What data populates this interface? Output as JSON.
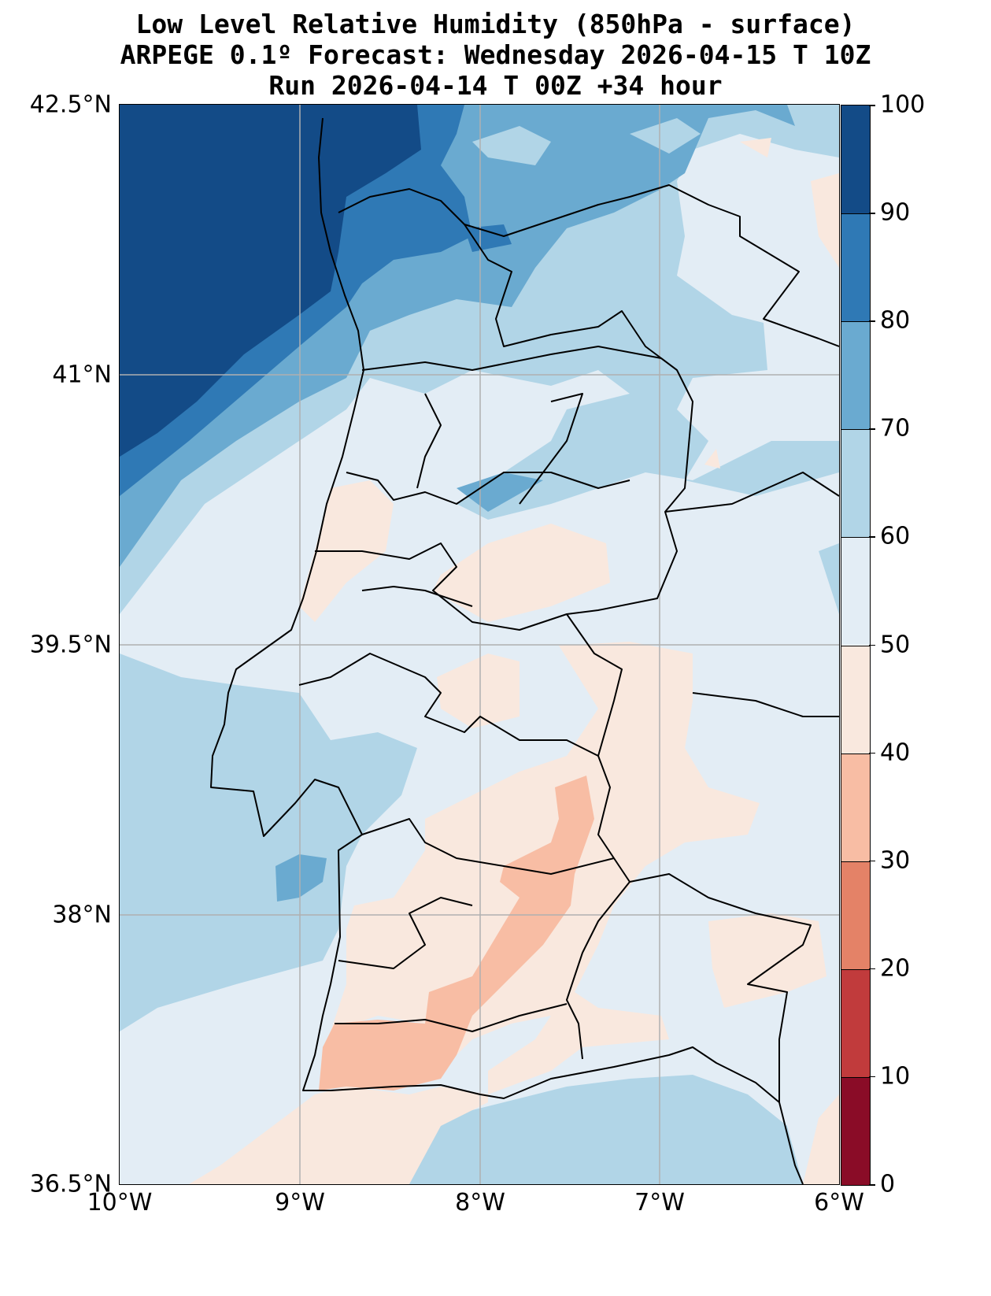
{
  "title": {
    "line1": "Low Level Relative Humidity (850hPa - surface)",
    "line2": "ARPEGE 0.1º Forecast: Wednesday 2026-04-15 T 10Z",
    "line3": "Run 2026-04-14 T 00Z +34 hour"
  },
  "axes": {
    "y_ticks": [
      "42.5°N",
      "41°N",
      "39.5°N",
      "38°N",
      "36.5°N"
    ],
    "y_values": [
      42.5,
      41,
      39.5,
      38,
      36.5
    ],
    "x_ticks": [
      "10°W",
      "9°W",
      "8°W",
      "7°W",
      "6°W"
    ],
    "x_values": [
      -10,
      -9,
      -8,
      -7,
      -6
    ]
  },
  "colorbar": {
    "ticks": [
      "0",
      "10",
      "20",
      "30",
      "40",
      "50",
      "60",
      "70",
      "80",
      "90",
      "100"
    ],
    "colors": [
      "#8a0c27",
      "#c13b3c",
      "#e48267",
      "#f8bda4",
      "#f9e8de",
      "#e3edf5",
      "#b1d5e7",
      "#6aaad0",
      "#2f79b5",
      "#134b87"
    ]
  }
}
